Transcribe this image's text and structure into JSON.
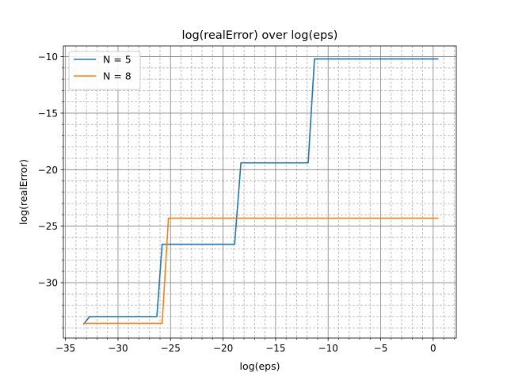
{
  "chart_data": {
    "type": "line",
    "title": "log(realError) over log(eps)",
    "xlabel": "log(eps)",
    "ylabel": "log(realError)",
    "xlim": [
      -35.2,
      2.2
    ],
    "ylim": [
      -34.9,
      -9.05
    ],
    "xticks": [
      -35,
      -30,
      -25,
      -20,
      -15,
      -10,
      -5,
      0
    ],
    "xtick_labels": [
      "−35",
      "−30",
      "−25",
      "−20",
      "−15",
      "−10",
      "−5",
      "0"
    ],
    "yticks": [
      -30,
      -25,
      -20,
      -15,
      -10
    ],
    "ytick_labels": [
      "−30",
      "−25",
      "−20",
      "−15",
      "−10"
    ],
    "x_minor_step": 1,
    "y_minor_step": 1,
    "grid": true,
    "legend_position": "top-left",
    "series": [
      {
        "name": "N = 5",
        "color": "#1f77b4",
        "x": [
          -33.3,
          -32.7,
          -26.3,
          -25.8,
          -18.9,
          -18.3,
          -11.9,
          -11.3,
          0.5
        ],
        "y": [
          -33.7,
          -33.0,
          -33.0,
          -26.6,
          -26.6,
          -19.4,
          -19.4,
          -10.2,
          -10.2
        ]
      },
      {
        "name": "N = 8",
        "color": "#ff7f0e",
        "x": [
          -33.3,
          -25.8,
          -25.2,
          0.5
        ],
        "y": [
          -33.6,
          -33.6,
          -24.3,
          -24.3
        ]
      }
    ]
  }
}
